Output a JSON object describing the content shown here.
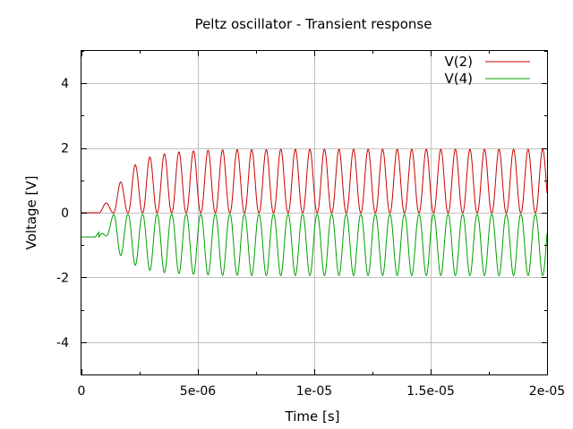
{
  "chart_data": {
    "type": "line",
    "title": "Peltz oscillator - Transient response",
    "xlabel": "Time [s]",
    "ylabel": "Voltage [V]",
    "xlim": [
      0,
      2e-05
    ],
    "ylim": [
      -5,
      5
    ],
    "xticks": [
      {
        "value": 0,
        "label": "0"
      },
      {
        "value": 5e-06,
        "label": "5e-06"
      },
      {
        "value": 1e-05,
        "label": "1e-05"
      },
      {
        "value": 1.5e-05,
        "label": "1.5e-05"
      },
      {
        "value": 2e-05,
        "label": "2e-05"
      }
    ],
    "yticks": [
      {
        "value": -4,
        "label": "-4"
      },
      {
        "value": -2,
        "label": "-2"
      },
      {
        "value": 0,
        "label": "0"
      },
      {
        "value": 2,
        "label": "2"
      },
      {
        "value": 4,
        "label": "4"
      }
    ],
    "grid": true,
    "legend_position": "top-right",
    "period": 6.25e-07,
    "series": [
      {
        "name": "V(2)",
        "color": "#cc0000",
        "baseline": 0,
        "direction": "up",
        "start": 7.5e-07,
        "amplitudes": [
          0.3,
          0.95,
          1.48,
          1.72,
          1.82,
          1.88,
          1.91,
          1.93,
          1.94,
          1.95,
          1.95,
          1.95,
          1.96,
          1.96,
          1.96,
          1.96,
          1.96,
          1.96,
          1.96,
          1.96,
          1.96,
          1.96,
          1.96,
          1.96,
          1.96,
          1.96,
          1.96,
          1.96,
          1.96,
          1.96,
          1.96,
          1.96
        ]
      },
      {
        "name": "V(4)",
        "color": "#00a000",
        "baseline": -0.75,
        "base_level": -0.05,
        "direction": "down",
        "start": 7.5e-07,
        "troughs": [
          -0.72,
          -1.32,
          -1.62,
          -1.78,
          -1.85,
          -1.88,
          -1.9,
          -1.92,
          -1.93,
          -1.93,
          -1.94,
          -1.94,
          -1.94,
          -1.94,
          -1.94,
          -1.94,
          -1.94,
          -1.94,
          -1.94,
          -1.94,
          -1.94,
          -1.94,
          -1.94,
          -1.94,
          -1.94,
          -1.94,
          -1.94,
          -1.94,
          -1.94,
          -1.94,
          -1.94,
          -1.94
        ]
      }
    ]
  }
}
